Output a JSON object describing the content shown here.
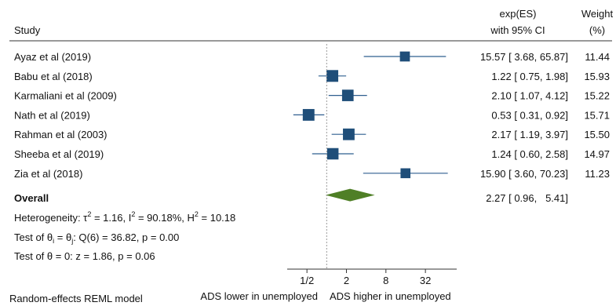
{
  "chart_data": {
    "type": "forest",
    "headers": {
      "study": "Study",
      "es_line1": "exp(ES)",
      "es_line2": "with 95% CI",
      "weight_line1": "Weight",
      "weight_line2": "(%)"
    },
    "x_scale": "log2",
    "xlim": [
      0.25,
      96
    ],
    "xticks": [
      {
        "value": 0.5,
        "label": "1/2"
      },
      {
        "value": 2,
        "label": "2"
      },
      {
        "value": 8,
        "label": "8"
      },
      {
        "value": 32,
        "label": "32"
      }
    ],
    "null_line": 1,
    "studies": [
      {
        "name": "Ayaz et al (2019)",
        "es": 15.57,
        "lo": 3.68,
        "hi": 65.87,
        "ci_text": "15.57 [ 3.68, 65.87]",
        "weight": 11.44,
        "weight_text": "11.44"
      },
      {
        "name": "Babu et al (2018)",
        "es": 1.22,
        "lo": 0.75,
        "hi": 1.98,
        "ci_text": "1.22 [ 0.75,   1.98]",
        "weight": 15.93,
        "weight_text": "15.93"
      },
      {
        "name": "Karmaliani et al (2009)",
        "es": 2.1,
        "lo": 1.07,
        "hi": 4.12,
        "ci_text": "2.10 [ 1.07,   4.12]",
        "weight": 15.22,
        "weight_text": "15.22"
      },
      {
        "name": "Nath et al (2019)",
        "es": 0.53,
        "lo": 0.31,
        "hi": 0.92,
        "ci_text": "0.53 [ 0.31,   0.92]",
        "weight": 15.71,
        "weight_text": "15.71"
      },
      {
        "name": "Rahman et al (2003)",
        "es": 2.17,
        "lo": 1.19,
        "hi": 3.97,
        "ci_text": "2.17 [ 1.19,   3.97]",
        "weight": 15.5,
        "weight_text": "15.50"
      },
      {
        "name": "Sheeba et al (2019)",
        "es": 1.24,
        "lo": 0.6,
        "hi": 2.58,
        "ci_text": "1.24 [ 0.60,   2.58]",
        "weight": 14.97,
        "weight_text": "14.97"
      },
      {
        "name": "Zia et al (2018)",
        "es": 15.9,
        "lo": 3.6,
        "hi": 70.23,
        "ci_text": "15.90 [ 3.60, 70.23]",
        "weight": 11.23,
        "weight_text": "11.23"
      }
    ],
    "overall": {
      "name": "Overall",
      "es": 2.27,
      "lo": 0.96,
      "hi": 5.41,
      "ci_text": "2.27 [ 0.96,   5.41]"
    },
    "stats": {
      "heterogeneity": {
        "prefix": "Heterogeneity: τ",
        "tau2": "1.16",
        "i2": "90.18%",
        "h2": "10.18"
      },
      "test_equal": {
        "q_df": "6",
        "q": "36.82",
        "p": "0.00"
      },
      "test_zero": {
        "z": "1.86",
        "p": "0.06"
      }
    },
    "footer": {
      "model": "Random-effects REML model",
      "left_label": "ADS lower in unemployed",
      "right_label": "ADS higher in unemployed"
    },
    "colors": {
      "marker": "#1f4e79",
      "ci_line": "#2f5f8f",
      "diamond": "#4f7f26",
      "null_line": "#9a9a9a"
    }
  }
}
